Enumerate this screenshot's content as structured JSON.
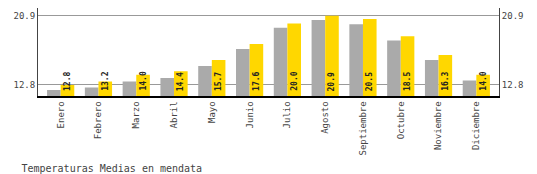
{
  "chart_data": {
    "type": "bar",
    "title": "Temperaturas Medias en mendata",
    "categories": [
      "Enero",
      "Febrero",
      "Marzo",
      "Abril",
      "Mayo",
      "Junio",
      "Julio",
      "Agosto",
      "Septiembre",
      "Octubre",
      "Noviembre",
      "Diciembre"
    ],
    "series": [
      {
        "color": "#AAAAAA",
        "values": [
          12.2,
          12.5,
          13.2,
          13.6,
          15.0,
          17.0,
          19.5,
          20.4,
          19.9,
          18.0,
          15.7,
          13.3
        ]
      },
      {
        "color": "#FFD700",
        "values": [
          12.8,
          13.2,
          14.0,
          14.4,
          15.7,
          17.6,
          20.0,
          20.9,
          20.5,
          18.5,
          16.3,
          14.0
        ],
        "data_labels": true,
        "value_labels": [
          "12.8",
          "13.2",
          "14.0",
          "14.4",
          "15.7",
          "17.6",
          "20.0",
          "20.9",
          "20.5",
          "18.5",
          "16.3",
          "14.0"
        ]
      }
    ],
    "ylim": [
      11.5,
      21.8
    ],
    "yticks": [
      12.8,
      20.9
    ],
    "y2lim": [
      11.5,
      21.8
    ],
    "y2ticks": [
      12.8,
      20.9
    ],
    "grid": true
  }
}
